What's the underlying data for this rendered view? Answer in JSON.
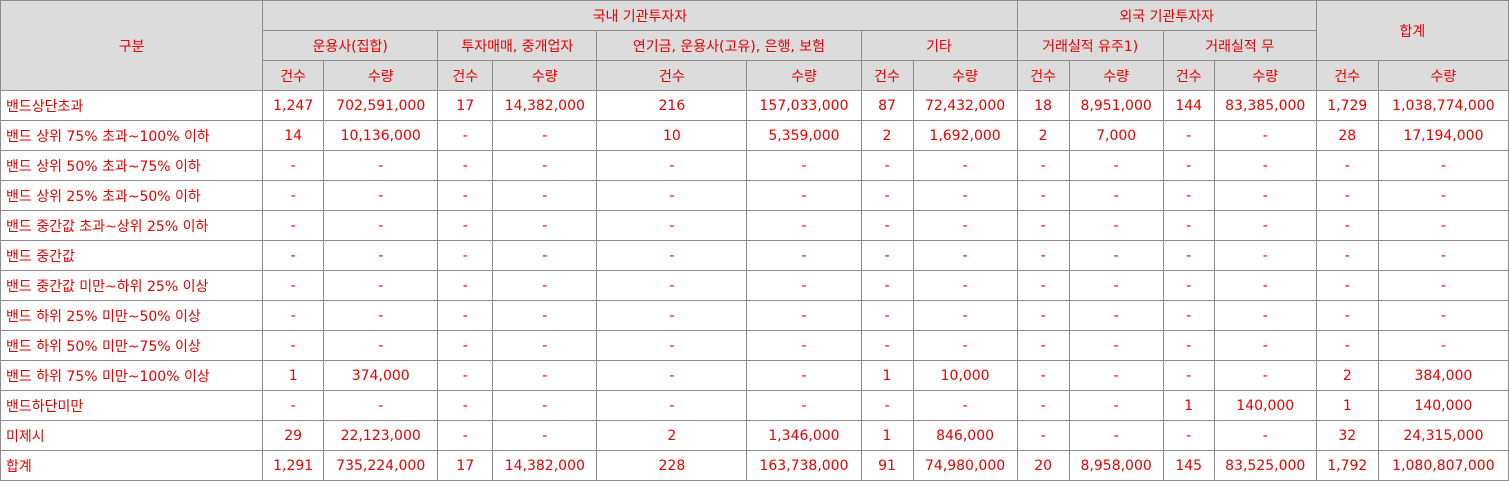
{
  "header": {
    "category": "구분",
    "domestic": "국내 기관투자자",
    "foreign": "외국 기관투자자",
    "total": "합계",
    "sub": [
      "운용사(집합)",
      "투자매매, 중개업자",
      "연기금, 운용사(고유), 은행, 보험",
      "기타",
      "거래실적 유주1)",
      "거래실적 무"
    ],
    "count_label": "건수",
    "qty_label": "수량"
  },
  "rows": [
    {
      "label": "밴드상단초과",
      "cells": [
        "1,247",
        "702,591,000",
        "17",
        "14,382,000",
        "216",
        "157,033,000",
        "87",
        "72,432,000",
        "18",
        "8,951,000",
        "144",
        "83,385,000",
        "1,729",
        "1,038,774,000"
      ]
    },
    {
      "label": "밴드 상위 75% 초과~100% 이하",
      "cells": [
        "14",
        "10,136,000",
        "-",
        "-",
        "10",
        "5,359,000",
        "2",
        "1,692,000",
        "2",
        "7,000",
        "-",
        "-",
        "28",
        "17,194,000"
      ]
    },
    {
      "label": "밴드 상위 50% 초과~75% 이하",
      "cells": [
        "-",
        "-",
        "-",
        "-",
        "-",
        "-",
        "-",
        "-",
        "-",
        "-",
        "-",
        "-",
        "-",
        "-"
      ]
    },
    {
      "label": "밴드 상위 25% 초과~50% 이하",
      "cells": [
        "-",
        "-",
        "-",
        "-",
        "-",
        "-",
        "-",
        "-",
        "-",
        "-",
        "-",
        "-",
        "-",
        "-"
      ]
    },
    {
      "label": "밴드 중간값 초과~상위 25% 이하",
      "cells": [
        "-",
        "-",
        "-",
        "-",
        "-",
        "-",
        "-",
        "-",
        "-",
        "-",
        "-",
        "-",
        "-",
        "-"
      ]
    },
    {
      "label": "밴드 중간값",
      "cells": [
        "-",
        "-",
        "-",
        "-",
        "-",
        "-",
        "-",
        "-",
        "-",
        "-",
        "-",
        "-",
        "-",
        "-"
      ]
    },
    {
      "label": "밴드 중간값 미만~하위 25% 이상",
      "cells": [
        "-",
        "-",
        "-",
        "-",
        "-",
        "-",
        "-",
        "-",
        "-",
        "-",
        "-",
        "-",
        "-",
        "-"
      ]
    },
    {
      "label": "밴드 하위 25% 미만~50% 이상",
      "cells": [
        "-",
        "-",
        "-",
        "-",
        "-",
        "-",
        "-",
        "-",
        "-",
        "-",
        "-",
        "-",
        "-",
        "-"
      ]
    },
    {
      "label": "밴드 하위 50% 미만~75% 이상",
      "cells": [
        "-",
        "-",
        "-",
        "-",
        "-",
        "-",
        "-",
        "-",
        "-",
        "-",
        "-",
        "-",
        "-",
        "-"
      ]
    },
    {
      "label": "밴드 하위 75% 미만~100% 이상",
      "cells": [
        "1",
        "374,000",
        "-",
        "-",
        "-",
        "-",
        "1",
        "10,000",
        "-",
        "-",
        "-",
        "-",
        "2",
        "384,000"
      ]
    },
    {
      "label": "밴드하단미만",
      "cells": [
        "-",
        "-",
        "-",
        "-",
        "-",
        "-",
        "-",
        "-",
        "-",
        "-",
        "1",
        "140,000",
        "1",
        "140,000"
      ]
    },
    {
      "label": "미제시",
      "cells": [
        "29",
        "22,123,000",
        "-",
        "-",
        "2",
        "1,346,000",
        "1",
        "846,000",
        "-",
        "-",
        "-",
        "-",
        "32",
        "24,315,000"
      ]
    },
    {
      "label": "합계",
      "cells": [
        "1,291",
        "735,224,000",
        "17",
        "14,382,000",
        "228",
        "163,738,000",
        "91",
        "74,980,000",
        "20",
        "8,958,000",
        "145",
        "83,525,000",
        "1,792",
        "1,080,807,000"
      ]
    }
  ],
  "colors": {
    "text": "#e60000",
    "header_bg": "#dcdcdc",
    "border": "#8c8c8c"
  }
}
